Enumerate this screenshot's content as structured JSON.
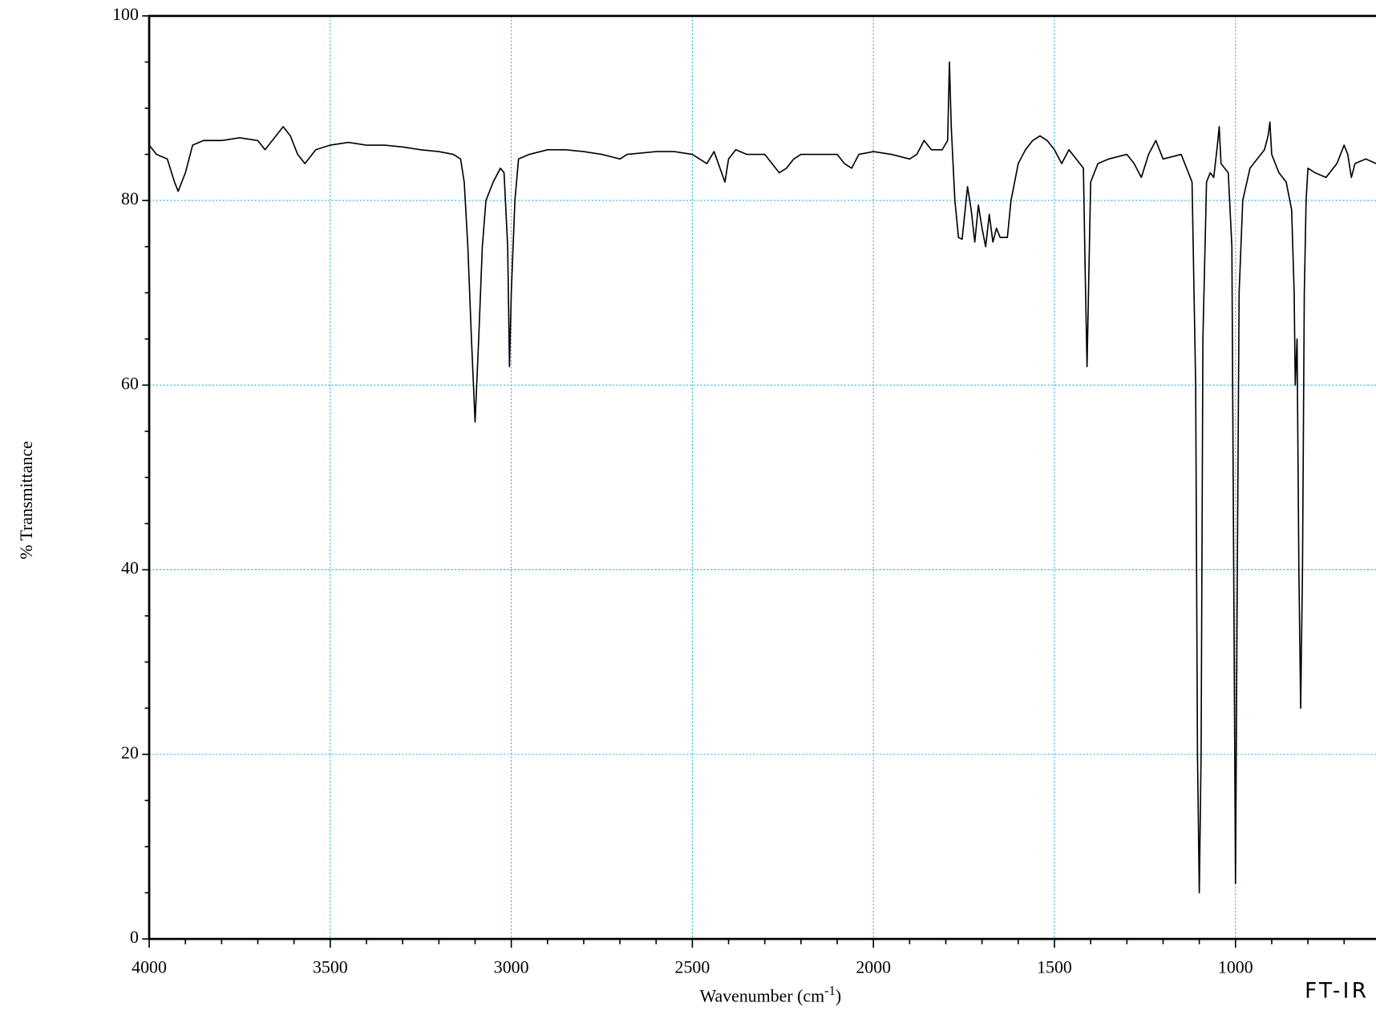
{
  "chart_data": {
    "type": "line",
    "x_label": {
      "text": "Wavenumber (cm",
      "sup": "-1",
      "close": ")"
    },
    "y_label": "% Transmittance",
    "annotation": "FT-IR",
    "xlim": [
      4000,
      612
    ],
    "ylim": [
      0,
      100
    ],
    "xticks": [
      4000,
      3500,
      3000,
      2500,
      2000,
      1500,
      1000
    ],
    "yticks": [
      0,
      20,
      40,
      60,
      80,
      100
    ],
    "xminor_ticks": [
      3900,
      3800,
      3700,
      3600,
      3400,
      3300,
      3200,
      3100,
      2900,
      2800,
      2700,
      2600,
      2400,
      2300,
      2200,
      2100,
      1900,
      1800,
      1700,
      1600,
      1400,
      1300,
      1200,
      1100,
      900,
      800,
      700
    ],
    "yminor_ticks": [
      5,
      10,
      15,
      25,
      30,
      35,
      45,
      50,
      55,
      65,
      70,
      75,
      85,
      90,
      95
    ],
    "grid": true,
    "grid_color": "#29b6d8",
    "series": [
      {
        "name": "spectrum",
        "color": "#000000",
        "x": [
          4000,
          3980,
          3950,
          3930,
          3920,
          3900,
          3880,
          3850,
          3800,
          3750,
          3700,
          3680,
          3660,
          3630,
          3610,
          3590,
          3570,
          3540,
          3500,
          3450,
          3400,
          3350,
          3300,
          3250,
          3200,
          3160,
          3140,
          3130,
          3120,
          3110,
          3100,
          3090,
          3080,
          3070,
          3050,
          3030,
          3020,
          3010,
          3005,
          3000,
          2990,
          2980,
          2950,
          2900,
          2850,
          2800,
          2750,
          2700,
          2680,
          2600,
          2550,
          2500,
          2460,
          2440,
          2410,
          2400,
          2380,
          2350,
          2300,
          2280,
          2260,
          2240,
          2220,
          2200,
          2150,
          2100,
          2080,
          2060,
          2040,
          2000,
          1950,
          1900,
          1880,
          1860,
          1840,
          1810,
          1795,
          1790,
          1785,
          1775,
          1765,
          1755,
          1740,
          1730,
          1720,
          1710,
          1700,
          1690,
          1680,
          1670,
          1660,
          1650,
          1630,
          1620,
          1600,
          1580,
          1560,
          1540,
          1520,
          1500,
          1480,
          1460,
          1440,
          1420,
          1415,
          1410,
          1405,
          1400,
          1380,
          1350,
          1300,
          1280,
          1260,
          1240,
          1220,
          1200,
          1150,
          1120,
          1110,
          1105,
          1100,
          1095,
          1090,
          1080,
          1070,
          1060,
          1050,
          1045,
          1040,
          1020,
          1010,
          1005,
          1000,
          995,
          990,
          980,
          960,
          940,
          920,
          910,
          905,
          900,
          880,
          860,
          845,
          838,
          835,
          830,
          825,
          820,
          815,
          810,
          805,
          800,
          780,
          750,
          720,
          700,
          690,
          680,
          670,
          640,
          612
        ],
        "values": [
          86,
          85,
          84.5,
          82,
          81,
          83,
          86,
          86.5,
          86.5,
          86.8,
          86.5,
          85.5,
          86.5,
          88,
          87,
          85,
          84,
          85.5,
          86,
          86.3,
          86,
          86,
          85.8,
          85.5,
          85.3,
          85,
          84.5,
          82,
          75,
          65,
          56,
          65,
          75,
          80,
          82,
          83.5,
          83,
          75,
          62,
          70,
          80,
          84.5,
          85,
          85.5,
          85.5,
          85.3,
          85,
          84.5,
          85,
          85.3,
          85.3,
          85,
          84,
          85.3,
          82,
          84.5,
          85.5,
          85,
          85,
          84,
          83,
          83.5,
          84.5,
          85,
          85,
          85,
          84,
          83.5,
          85,
          85.3,
          85,
          84.5,
          85,
          86.5,
          85.5,
          85.5,
          86.5,
          95,
          88,
          80,
          76,
          75.8,
          81.5,
          79,
          75.5,
          79.5,
          77,
          75,
          78.5,
          75.5,
          77,
          76,
          76,
          80,
          84,
          85.5,
          86.5,
          87,
          86.5,
          85.5,
          84,
          85.5,
          84.5,
          83.5,
          72,
          62,
          72,
          82,
          84,
          84.5,
          85,
          84,
          82.5,
          85,
          86.5,
          84.5,
          85,
          82,
          60,
          20,
          5,
          20,
          65,
          82,
          83,
          82.5,
          86,
          88,
          84,
          83,
          75,
          40,
          6,
          40,
          70,
          80,
          83.5,
          84.5,
          85.5,
          87,
          88.5,
          85,
          83,
          82,
          79,
          70,
          60,
          65,
          40,
          25,
          40,
          70,
          80,
          83.5,
          83,
          82.5,
          84,
          86,
          85,
          82.5,
          84,
          84.5,
          84
        ]
      }
    ]
  }
}
